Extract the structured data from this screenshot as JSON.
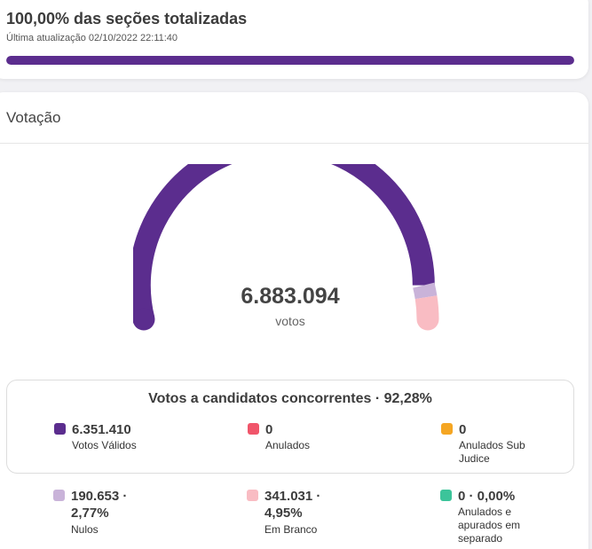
{
  "totalization": {
    "title": "100,00% das seções totalizadas",
    "updated": "Última atualização 02/10/2022 22:11:40",
    "progress_fraction": 1.0,
    "progress_color": "#5b2d8e"
  },
  "section": {
    "title": "Votação"
  },
  "gauge": {
    "total": "6.883.094",
    "unit": "votos",
    "segments": [
      {
        "name": "Votos Válidos",
        "fraction": 0.9228,
        "color": "#5b2d8e"
      },
      {
        "name": "Nulos",
        "fraction": 0.0277,
        "color": "#c9b3d9"
      },
      {
        "name": "Em Branco",
        "fraction": 0.0495,
        "color": "#f9bcc3"
      }
    ]
  },
  "summary": {
    "title": "Votos a candidatos concorrentes · 92,28%",
    "stats": [
      {
        "value": "6.351.410",
        "label": "Votos Válidos",
        "color": "#5b2d8e"
      },
      {
        "value": "0",
        "label": "Anulados",
        "color": "#f0556a"
      },
      {
        "value": "0",
        "label": "Anulados Sub Judice",
        "color": "#f5a623"
      }
    ]
  },
  "others": [
    {
      "value": "190.653 · 2,77%",
      "label": "Nulos",
      "color": "#c9b3d9"
    },
    {
      "value": "341.031 · 4,95%",
      "label": "Em Branco",
      "color": "#f9bcc3"
    },
    {
      "value": "0 · 0,00%",
      "label": "Anulados e apurados em separado",
      "color": "#3cc49a"
    }
  ]
}
